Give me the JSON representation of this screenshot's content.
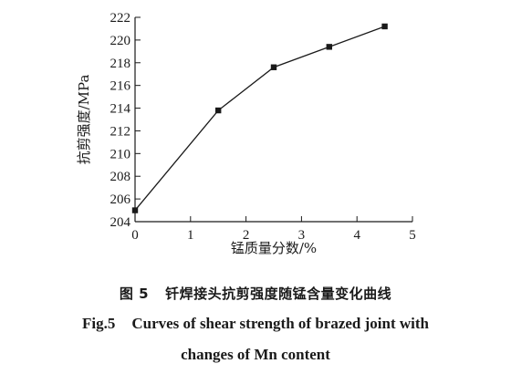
{
  "chart_data": {
    "type": "line",
    "x": [
      0,
      1.5,
      2.5,
      3.5,
      4.5
    ],
    "series": [
      {
        "values": [
          205.0,
          213.8,
          217.6,
          219.4,
          221.2
        ]
      }
    ],
    "xlabel": "锰质量分数/%",
    "ylabel": "抗剪强度/MPa",
    "xlim": [
      0,
      5
    ],
    "ylim": [
      204,
      222
    ],
    "xticks": [
      0,
      1,
      2,
      3,
      4,
      5
    ],
    "yticks": [
      204,
      206,
      208,
      210,
      212,
      214,
      216,
      218,
      220,
      222
    ],
    "grid": false,
    "marker": "square",
    "line_color": "#1a1a1a"
  },
  "caption": {
    "zh_label": "图 5",
    "zh_text": "钎焊接头抗剪强度随锰含量变化曲线",
    "en_label": "Fig.5",
    "en_line1": "Curves of shear strength of brazed joint with",
    "en_line2": "changes of Mn content"
  }
}
